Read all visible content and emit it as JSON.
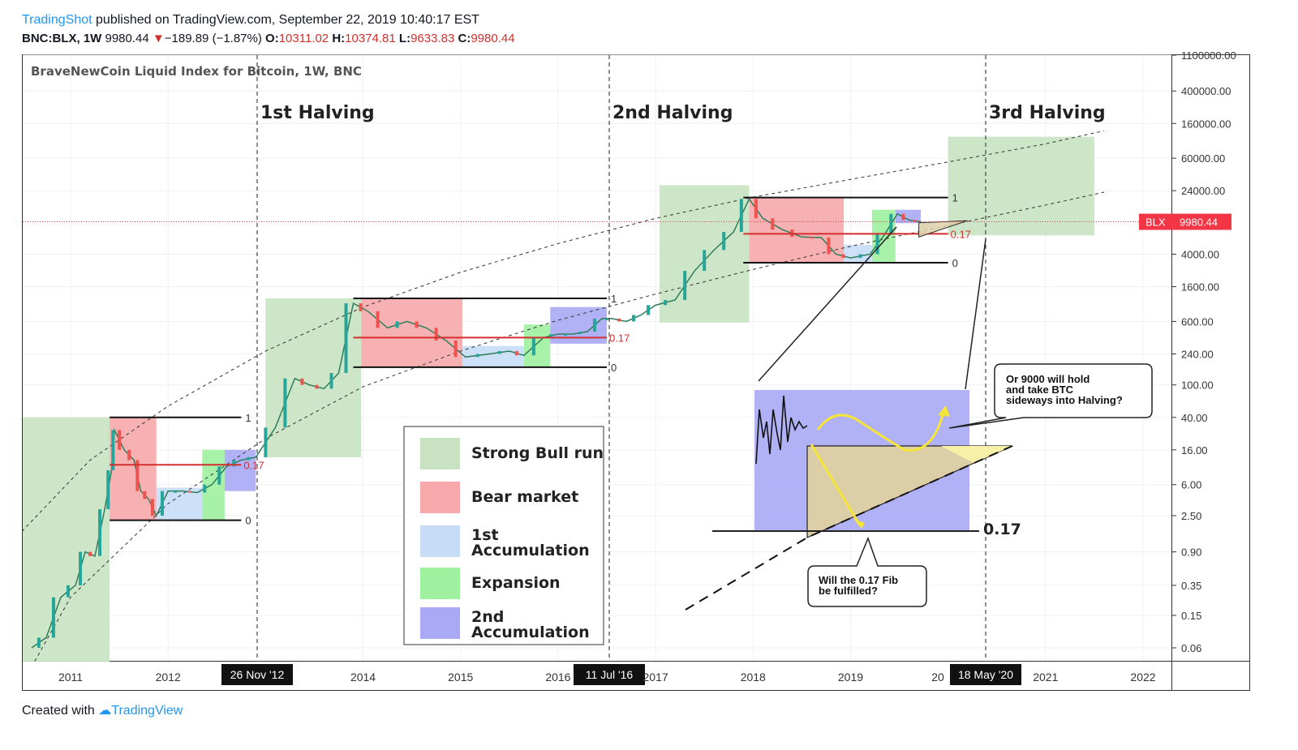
{
  "header": {
    "author": "TradingShot",
    "published": "published on TradingView.com, September 22, 2019 10:40:17 EST",
    "symbol": "BNC:BLX, 1W",
    "last": "9980.44",
    "change_arrow": "▼",
    "change": "−189.89 (−1.87%)",
    "open_label": "O:",
    "open": "10311.02",
    "high_label": "H:",
    "high": "10374.81",
    "low_label": "L:",
    "low": "9633.83",
    "close_label": "C:",
    "close": "9980.44"
  },
  "footer": {
    "created_with": "Created with",
    "brand": "TradingView"
  },
  "chart_data": {
    "type": "line",
    "title": "BraveNewCoin Liquid Index for Bitcoin, 1W, BNC",
    "y_scale": "log",
    "ylim": [
      0.04,
      1100000
    ],
    "x_ticks": [
      "2011",
      "2012",
      "2014",
      "2015",
      "2016",
      "2017",
      "2018",
      "2019",
      "2021",
      "2022"
    ],
    "x_tick_partial": "20",
    "y_ticks": [
      "1100000.00",
      "400000.00",
      "160000.00",
      "60000.00",
      "24000.00",
      "4000.00",
      "1600.00",
      "600.00",
      "240.00",
      "100.00",
      "40.00",
      "16.00",
      "6.00",
      "2.50",
      "0.90",
      "0.35",
      "0.15",
      "0.06"
    ],
    "last_price": {
      "label": "BLX",
      "value": "9980.44",
      "color": "#f23645"
    },
    "halvings": [
      {
        "label": "1st Halving",
        "date": "26 Nov '12"
      },
      {
        "label": "2nd Halving",
        "date": "11 Jul '16"
      },
      {
        "label": "3rd Halving",
        "date": "18 May '20"
      }
    ],
    "fib_labels": {
      "one": "1",
      "mid": "0.17",
      "zero": "0"
    },
    "fib_cycles": [
      {
        "top": 40,
        "mid": 10.5,
        "bottom": 2.2
      },
      {
        "top": 1150,
        "mid": 380,
        "bottom": 165
      },
      {
        "top": 19800,
        "mid": 7100,
        "bottom": 3150
      }
    ],
    "legend": [
      {
        "label": "Strong Bull run",
        "color": "#c9e3c2"
      },
      {
        "label": "Bear market",
        "color": "#f7a8ab"
      },
      {
        "label": "1st\nAccumulation",
        "color": "#c7ddf7"
      },
      {
        "label": "Expansion",
        "color": "#9ff09f"
      },
      {
        "label": "2nd\nAccumulation",
        "color": "#a9a9f5"
      }
    ],
    "inset": {
      "fib_label": "0.17",
      "callout_hold": "Or 9000 will hold\nand take BTC\nsideways into Halving?",
      "callout_fib": "Will the 0.17 Fib\nbe fulfilled?"
    },
    "series": [
      {
        "values": [
          {
            "x": 2010.6,
            "y": 0.06
          },
          {
            "x": 2010.75,
            "y": 0.08
          },
          {
            "x": 2010.9,
            "y": 0.25
          },
          {
            "x": 2011.05,
            "y": 0.35
          },
          {
            "x": 2011.15,
            "y": 0.9
          },
          {
            "x": 2011.25,
            "y": 0.8
          },
          {
            "x": 2011.35,
            "y": 3
          },
          {
            "x": 2011.42,
            "y": 9
          },
          {
            "x": 2011.45,
            "y": 28
          },
          {
            "x": 2011.55,
            "y": 16
          },
          {
            "x": 2011.65,
            "y": 12
          },
          {
            "x": 2011.72,
            "y": 5
          },
          {
            "x": 2011.8,
            "y": 4
          },
          {
            "x": 2011.88,
            "y": 2.5
          },
          {
            "x": 2012.0,
            "y": 5
          },
          {
            "x": 2012.15,
            "y": 5
          },
          {
            "x": 2012.3,
            "y": 4.8
          },
          {
            "x": 2012.45,
            "y": 6
          },
          {
            "x": 2012.6,
            "y": 10
          },
          {
            "x": 2012.75,
            "y": 12
          },
          {
            "x": 2012.9,
            "y": 13
          },
          {
            "x": 2013.1,
            "y": 30
          },
          {
            "x": 2013.3,
            "y": 120
          },
          {
            "x": 2013.45,
            "y": 100
          },
          {
            "x": 2013.6,
            "y": 90
          },
          {
            "x": 2013.75,
            "y": 140
          },
          {
            "x": 2013.9,
            "y": 1000
          },
          {
            "x": 2014.05,
            "y": 800
          },
          {
            "x": 2014.25,
            "y": 500
          },
          {
            "x": 2014.45,
            "y": 600
          },
          {
            "x": 2014.65,
            "y": 500
          },
          {
            "x": 2014.85,
            "y": 350
          },
          {
            "x": 2015.05,
            "y": 220
          },
          {
            "x": 2015.3,
            "y": 240
          },
          {
            "x": 2015.5,
            "y": 260
          },
          {
            "x": 2015.65,
            "y": 230
          },
          {
            "x": 2015.85,
            "y": 380
          },
          {
            "x": 2016.0,
            "y": 420
          },
          {
            "x": 2016.15,
            "y": 420
          },
          {
            "x": 2016.3,
            "y": 450
          },
          {
            "x": 2016.45,
            "y": 650
          },
          {
            "x": 2016.55,
            "y": 650
          },
          {
            "x": 2016.7,
            "y": 600
          },
          {
            "x": 2016.85,
            "y": 720
          },
          {
            "x": 2017.0,
            "y": 950
          },
          {
            "x": 2017.2,
            "y": 1100
          },
          {
            "x": 2017.4,
            "y": 2500
          },
          {
            "x": 2017.6,
            "y": 4500
          },
          {
            "x": 2017.8,
            "y": 7500
          },
          {
            "x": 2017.96,
            "y": 19000
          },
          {
            "x": 2018.1,
            "y": 11000
          },
          {
            "x": 2018.3,
            "y": 8000
          },
          {
            "x": 2018.5,
            "y": 6500
          },
          {
            "x": 2018.7,
            "y": 6400
          },
          {
            "x": 2018.85,
            "y": 4000
          },
          {
            "x": 2019.0,
            "y": 3600
          },
          {
            "x": 2019.2,
            "y": 4000
          },
          {
            "x": 2019.35,
            "y": 7000
          },
          {
            "x": 2019.48,
            "y": 12500
          },
          {
            "x": 2019.6,
            "y": 10500
          },
          {
            "x": 2019.72,
            "y": 9980.44
          }
        ]
      }
    ]
  }
}
